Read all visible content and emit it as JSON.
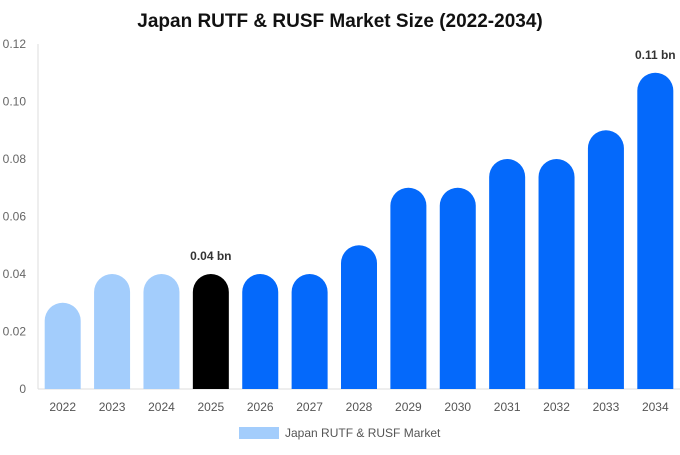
{
  "chart_data": {
    "type": "bar",
    "title": "Japan RUTF & RUSF Market Size (2022-2034)",
    "xlabel": "",
    "ylabel": "",
    "ylim": [
      0,
      0.12
    ],
    "y_ticks": [
      "0",
      "0.02",
      "0.04",
      "0.06",
      "0.08",
      "0.10",
      "0.12"
    ],
    "y_tick_values": [
      0,
      0.02,
      0.04,
      0.06,
      0.08,
      0.1,
      0.12
    ],
    "categories": [
      "2022",
      "2023",
      "2024",
      "2025",
      "2026",
      "2027",
      "2028",
      "2029",
      "2030",
      "2031",
      "2032",
      "2033",
      "2034"
    ],
    "series": [
      {
        "name": "Japan RUTF & RUSF Market",
        "values": [
          0.03,
          0.04,
          0.04,
          0.04,
          0.04,
          0.04,
          0.05,
          0.07,
          0.07,
          0.08,
          0.08,
          0.09,
          0.11
        ]
      }
    ],
    "bar_colors": [
      "#a3cdfc",
      "#a3cdfc",
      "#a3cdfc",
      "#000000",
      "#0469fb",
      "#0469fb",
      "#0469fb",
      "#0469fb",
      "#0469fb",
      "#0469fb",
      "#0469fb",
      "#0469fb",
      "#0469fb"
    ],
    "data_labels": [
      {
        "category": "2025",
        "text": "0.04 bn"
      },
      {
        "category": "2034",
        "text": "0.11 bn"
      }
    ],
    "legend": {
      "position": "bottom-center",
      "label": "Japan RUTF & RUSF Market",
      "color": "#a3cdfc"
    },
    "grid": false
  }
}
